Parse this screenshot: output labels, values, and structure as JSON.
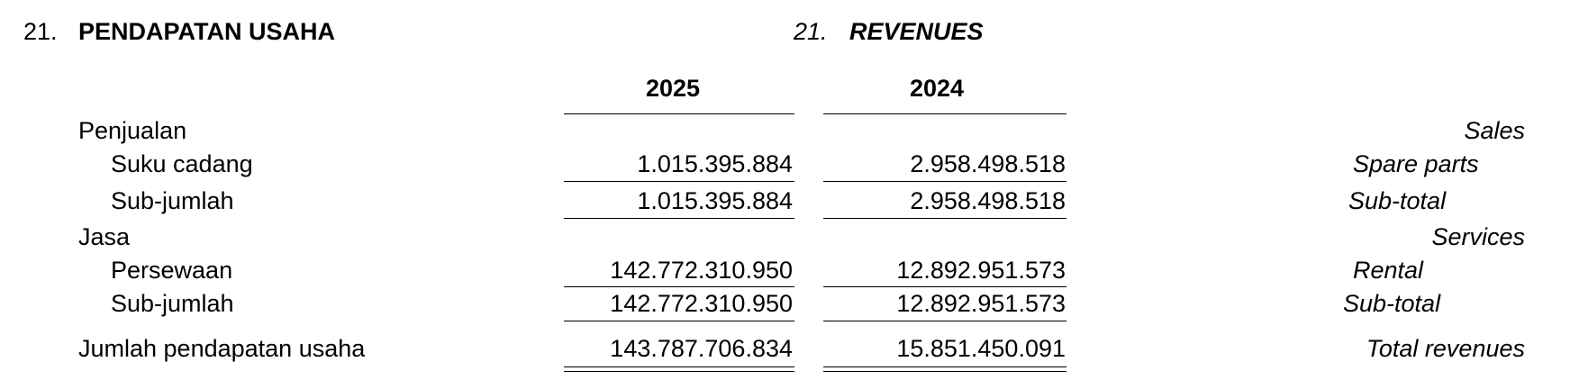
{
  "heading_id": {
    "number": "21.",
    "title": "PENDAPATAN USAHA"
  },
  "heading_en": {
    "number": "21.",
    "title": "REVENUES"
  },
  "columns": [
    "2025",
    "2024"
  ],
  "rows": [
    {
      "label_id": "Penjualan",
      "label_en": "Sales",
      "v2025": "",
      "v2024": ""
    },
    {
      "label_id": "Suku cadang",
      "label_en": "Spare parts",
      "v2025": "1.015.395.884",
      "v2024": "2.958.498.518"
    },
    {
      "label_id": "Sub-jumlah",
      "label_en": "Sub-total",
      "v2025": "1.015.395.884",
      "v2024": "2.958.498.518"
    },
    {
      "label_id": "Jasa",
      "label_en": "Services",
      "v2025": "",
      "v2024": ""
    },
    {
      "label_id": "Persewaan",
      "label_en": "Rental",
      "v2025": "142.772.310.950",
      "v2024": "12.892.951.573"
    },
    {
      "label_id": "Sub-jumlah",
      "label_en": "Sub-total",
      "v2025": "142.772.310.950",
      "v2024": "12.892.951.573"
    },
    {
      "label_id": "Jumlah pendapatan usaha",
      "label_en": "Total revenues",
      "v2025": "143.787.706.834",
      "v2024": "15.851.450.091"
    }
  ]
}
